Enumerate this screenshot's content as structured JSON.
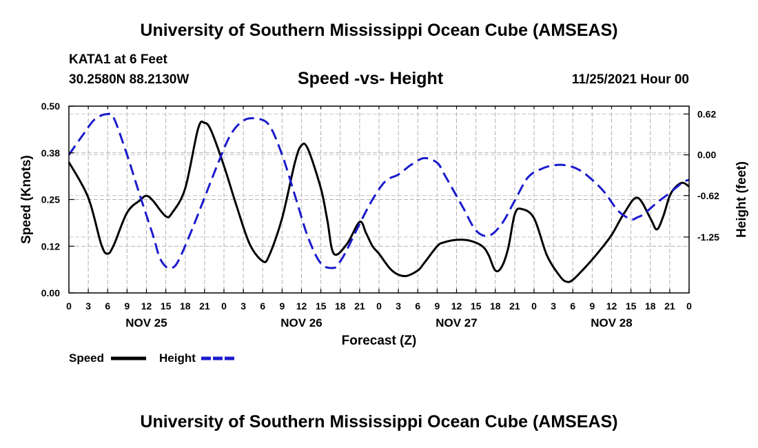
{
  "header": {
    "title": "University of Southern Mississippi Ocean Cube (AMSEAS)",
    "station": "KATA1 at 6 Feet",
    "coords": "30.2580N  88.2130W",
    "subtitle": "Speed -vs- Height",
    "datetime": "11/25/2021 Hour 00"
  },
  "footer": {
    "title": "University of Southern Mississippi Ocean Cube (AMSEAS)"
  },
  "chart_data": {
    "type": "line",
    "title": "Speed -vs- Height",
    "xlabel": "Forecast (Z)",
    "ylabel_left": "Speed (Knots)",
    "ylabel_right": "Height (feet)",
    "x_range_hours": [
      0,
      96
    ],
    "x_tick_step_hours": 3,
    "x_tick_labels": [
      "0",
      "3",
      "6",
      "9",
      "12",
      "15",
      "18",
      "21",
      "0",
      "3",
      "6",
      "9",
      "12",
      "15",
      "18",
      "21",
      "0",
      "3",
      "6",
      "9",
      "12",
      "15",
      "18",
      "21",
      "0",
      "3",
      "6",
      "9",
      "12",
      "15",
      "18",
      "21",
      "0"
    ],
    "date_labels": [
      {
        "label": "NOV 25",
        "hour": 12
      },
      {
        "label": "NOV 26",
        "hour": 36
      },
      {
        "label": "NOV 27",
        "hour": 60
      },
      {
        "label": "NOV 28",
        "hour": 84
      }
    ],
    "ylim_left": [
      0.0,
      0.5
    ],
    "y_ticks_left": [
      0.0,
      0.125,
      0.25,
      0.375,
      0.5
    ],
    "y_tick_labels_left": [
      "0.00",
      "0.12",
      "0.25",
      "0.38",
      "0.50"
    ],
    "ylim_right": [
      -2.1,
      0.74
    ],
    "y_ticks_right": [
      0.62,
      0.0,
      -0.62,
      -1.25
    ],
    "y_tick_labels_right": [
      "0.62",
      "0.00",
      "-0.62",
      "-1.25"
    ],
    "grid": true,
    "legend": [
      {
        "name": "Speed",
        "color": "#000000",
        "style": "solid"
      },
      {
        "name": "Height",
        "color": "#1a1acc",
        "style": "dashed"
      }
    ],
    "series": [
      {
        "name": "Speed",
        "axis": "left",
        "color": "#000000",
        "x": [
          0,
          3,
          5,
          6,
          7,
          9,
          11,
          12,
          13,
          15,
          16,
          18,
          20,
          21,
          22,
          24,
          26,
          28,
          30,
          31,
          33,
          35,
          36,
          37,
          39,
          40,
          41,
          43,
          45,
          46,
          47,
          48,
          50,
          52,
          54,
          55,
          57,
          58,
          60,
          62,
          64,
          65,
          66,
          67,
          68,
          69,
          70,
          72,
          74,
          76,
          77,
          78,
          80,
          82,
          84,
          86,
          88,
          90,
          91,
          92,
          93,
          94,
          95,
          96
        ],
        "y": [
          0.35,
          0.255,
          0.13,
          0.105,
          0.13,
          0.215,
          0.248,
          0.26,
          0.247,
          0.205,
          0.215,
          0.28,
          0.44,
          0.455,
          0.435,
          0.34,
          0.23,
          0.13,
          0.085,
          0.1,
          0.2,
          0.35,
          0.395,
          0.385,
          0.28,
          0.195,
          0.105,
          0.13,
          0.19,
          0.16,
          0.125,
          0.105,
          0.06,
          0.045,
          0.06,
          0.08,
          0.125,
          0.135,
          0.142,
          0.14,
          0.125,
          0.1,
          0.06,
          0.07,
          0.12,
          0.21,
          0.225,
          0.2,
          0.1,
          0.045,
          0.03,
          0.035,
          0.07,
          0.11,
          0.155,
          0.215,
          0.255,
          0.2,
          0.17,
          0.205,
          0.26,
          0.285,
          0.295,
          0.285
        ]
      },
      {
        "name": "Height",
        "axis": "right",
        "color": "#1a1acc",
        "x": [
          0,
          2,
          4,
          6,
          7,
          9,
          11,
          13,
          14,
          15,
          16,
          17,
          19,
          21,
          23,
          25,
          27,
          29,
          31,
          33,
          35,
          37,
          39,
          41,
          42,
          43,
          45,
          47,
          49,
          51,
          53,
          55,
          57,
          58,
          59,
          61,
          63,
          65,
          67,
          69,
          71,
          73,
          75,
          77,
          79,
          81,
          83,
          85,
          87,
          88,
          89,
          91,
          93,
          95,
          96
        ],
        "y": [
          0.0,
          0.28,
          0.54,
          0.62,
          0.55,
          0.0,
          -0.62,
          -1.22,
          -1.55,
          -1.7,
          -1.72,
          -1.6,
          -1.15,
          -0.65,
          -0.15,
          0.3,
          0.52,
          0.55,
          0.45,
          0.0,
          -0.62,
          -1.25,
          -1.65,
          -1.72,
          -1.62,
          -1.45,
          -1.05,
          -0.68,
          -0.4,
          -0.3,
          -0.15,
          -0.05,
          -0.12,
          -0.28,
          -0.45,
          -0.8,
          -1.15,
          -1.23,
          -1.05,
          -0.7,
          -0.35,
          -0.22,
          -0.16,
          -0.16,
          -0.23,
          -0.38,
          -0.58,
          -0.85,
          -0.98,
          -0.95,
          -0.9,
          -0.73,
          -0.58,
          -0.42,
          -0.38
        ]
      }
    ]
  }
}
